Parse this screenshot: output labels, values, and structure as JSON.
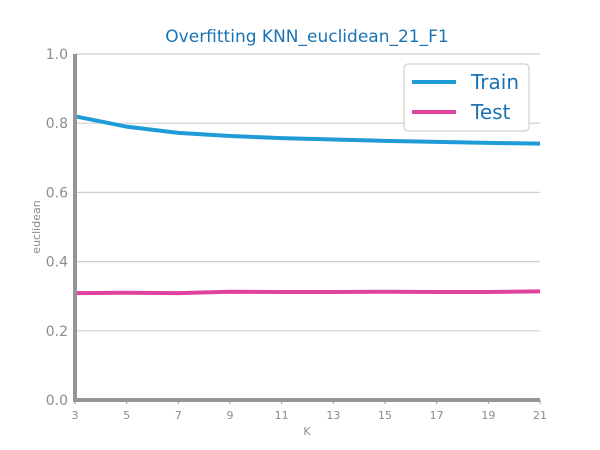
{
  "chart_data": {
    "type": "line",
    "title": "Overfitting KNN_euclidean_21_F1",
    "xlabel": "K",
    "ylabel": "euclidean",
    "x": [
      3,
      5,
      7,
      9,
      11,
      13,
      15,
      17,
      19,
      21
    ],
    "xlim": [
      3,
      21
    ],
    "ylim": [
      0.0,
      1.0
    ],
    "yticks": [
      "0.0",
      "0.2",
      "0.4",
      "0.6",
      "0.8",
      "1.0"
    ],
    "grid": "horizontal",
    "legend_position": "top-right",
    "series": [
      {
        "name": "Train",
        "color": "#1f9bd8",
        "values": [
          0.82,
          0.79,
          0.772,
          0.763,
          0.757,
          0.753,
          0.749,
          0.746,
          0.743,
          0.741
        ]
      },
      {
        "name": "Test",
        "color": "#e0419a",
        "values": [
          0.309,
          0.31,
          0.309,
          0.313,
          0.312,
          0.312,
          0.313,
          0.312,
          0.312,
          0.314
        ]
      }
    ]
  },
  "colors": {
    "title": "#1a73b5",
    "legend_text": "#1a73b5",
    "axis": "#959595",
    "grid": "#cfcfcf",
    "tick_text": "#8c8c8c"
  }
}
